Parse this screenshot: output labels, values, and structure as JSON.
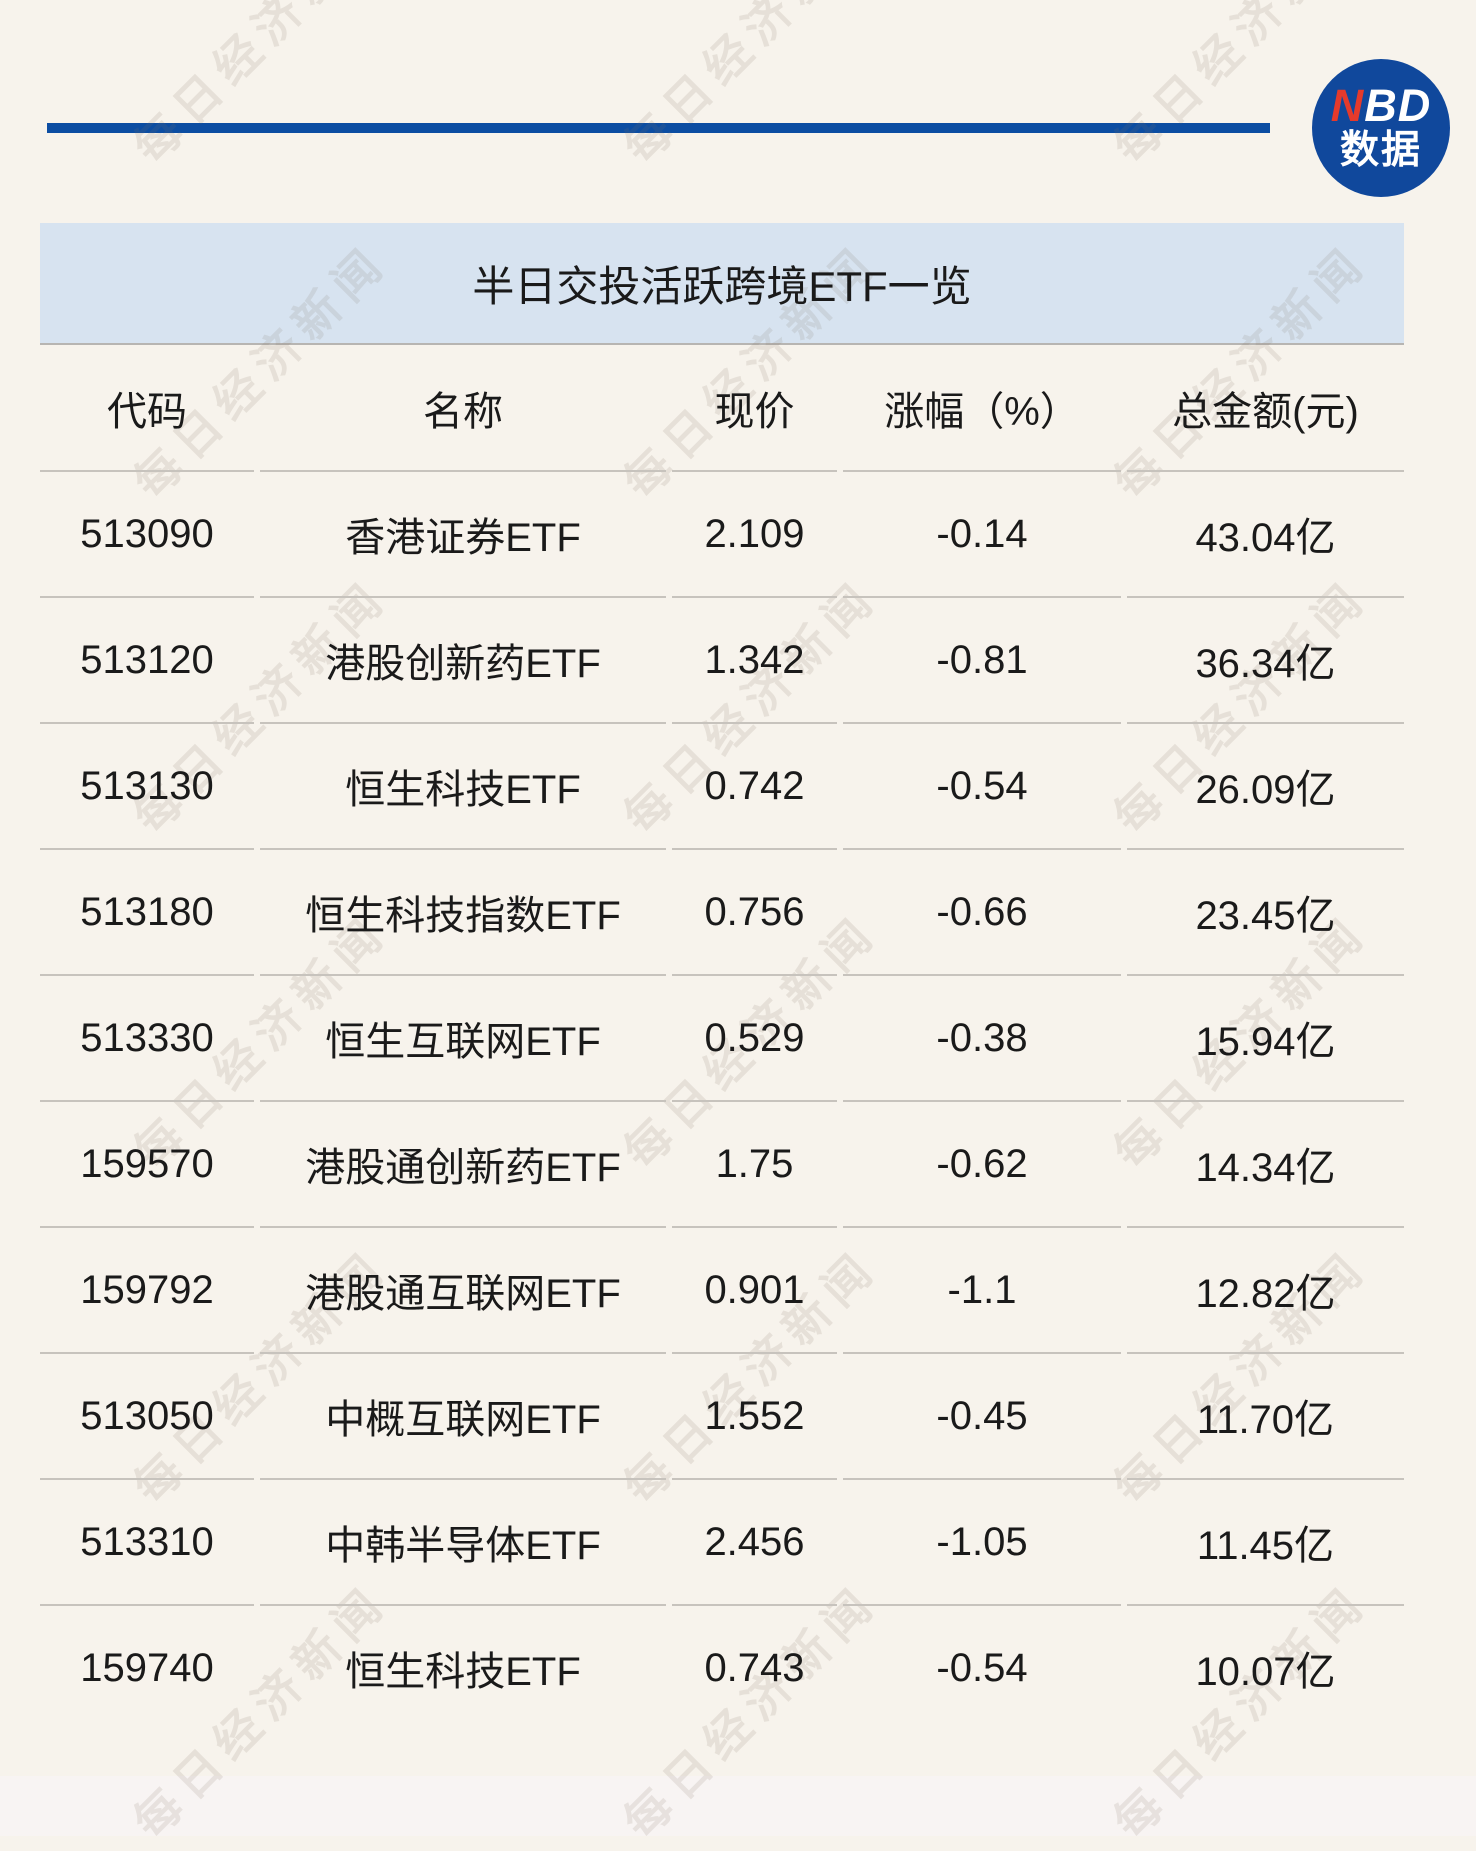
{
  "page": {
    "background": "#F7F3EC",
    "accent_blue": "#0C4DA2",
    "title_bar_bg": "#D7E3F0",
    "row_border": "#C7C3BD",
    "text_color": "#1A1A1A"
  },
  "logo": {
    "n": "N",
    "bd": "BD",
    "caption": "数据",
    "circle_color": "#10489C",
    "n_red": "#E53A2B"
  },
  "watermark": {
    "text": "每日经济新闻"
  },
  "chart_data": {
    "type": "table",
    "title": "半日交投活跃跨境ETF一览",
    "columns": [
      "代码",
      "名称",
      "现价",
      "涨幅（%）",
      "总金额(元)"
    ],
    "column_keys": [
      "code",
      "name",
      "price",
      "change",
      "amount"
    ],
    "rows": [
      [
        "513090",
        "香港证券ETF",
        "2.109",
        "-0.14",
        "43.04亿"
      ],
      [
        "513120",
        "港股创新药ETF",
        "1.342",
        "-0.81",
        "36.34亿"
      ],
      [
        "513130",
        "恒生科技ETF",
        "0.742",
        "-0.54",
        "26.09亿"
      ],
      [
        "513180",
        "恒生科技指数ETF",
        "0.756",
        "-0.66",
        "23.45亿"
      ],
      [
        "513330",
        "恒生互联网ETF",
        "0.529",
        "-0.38",
        "15.94亿"
      ],
      [
        "159570",
        "港股通创新药ETF",
        "1.75",
        "-0.62",
        "14.34亿"
      ],
      [
        "159792",
        "港股通互联网ETF",
        "0.901",
        "-1.1",
        "12.82亿"
      ],
      [
        "513050",
        "中概互联网ETF",
        "1.552",
        "-0.45",
        "11.70亿"
      ],
      [
        "513310",
        "中韩半导体ETF",
        "2.456",
        "-1.05",
        "11.45亿"
      ],
      [
        "159740",
        "恒生科技ETF",
        "0.743",
        "-0.54",
        "10.07亿"
      ]
    ]
  }
}
